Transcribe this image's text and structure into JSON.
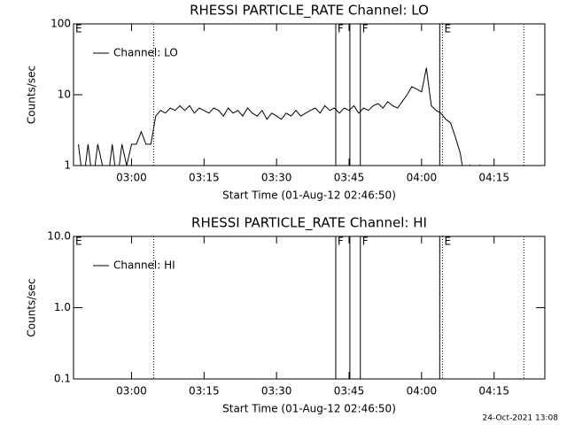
{
  "chart_data": [
    {
      "type": "line",
      "title": "RHESSI PARTICLE_RATE Channel: LO",
      "ylabel": "Counts/sec",
      "xlabel": "Start Time (01-Aug-12 02:46:50)",
      "log_y": true,
      "ylim": [
        1,
        100
      ],
      "yticks": [
        1,
        10,
        100
      ],
      "xlim": [
        "02:48:00",
        "04:25:30"
      ],
      "xticks": [
        "03:00",
        "03:15",
        "03:30",
        "03:45",
        "04:00",
        "04:15"
      ],
      "legend": "top-left",
      "markers": [
        {
          "x": "02:48:00",
          "label": "E",
          "style": "solid"
        },
        {
          "x": "03:04:34",
          "style": "dotted"
        },
        {
          "x": "03:42:15",
          "label": "F",
          "style": "solid"
        },
        {
          "x": "03:45:10",
          "style": "solid"
        },
        {
          "x": "03:47:20",
          "label": "F",
          "style": "solid"
        },
        {
          "x": "04:03:45",
          "style": "solid"
        },
        {
          "x": "04:04:20",
          "label": "E",
          "style": "dotted"
        },
        {
          "x": "04:21:10",
          "style": "dotted"
        }
      ],
      "series": [
        {
          "name": "Channel: LO",
          "color": "#000000",
          "x": [
            "02:49",
            "02:50",
            "02:51",
            "02:52",
            "02:53",
            "02:54",
            "02:55",
            "02:56",
            "02:57",
            "02:58",
            "02:59",
            "03:00",
            "03:01",
            "03:02",
            "03:03",
            "03:04",
            "03:05",
            "03:06",
            "03:07",
            "03:08",
            "03:09",
            "03:10",
            "03:11",
            "03:12",
            "03:13",
            "03:14",
            "03:15",
            "03:16",
            "03:17",
            "03:18",
            "03:19",
            "03:20",
            "03:21",
            "03:22",
            "03:23",
            "03:24",
            "03:25",
            "03:26",
            "03:27",
            "03:28",
            "03:29",
            "03:30",
            "03:31",
            "03:32",
            "03:33",
            "03:34",
            "03:35",
            "03:36",
            "03:37",
            "03:38",
            "03:39",
            "03:40",
            "03:41",
            "03:42",
            "03:43",
            "03:44",
            "03:45",
            "03:46",
            "03:47",
            "03:48",
            "03:49",
            "03:50",
            "03:51",
            "03:52",
            "03:53",
            "03:54",
            "03:55",
            "03:56",
            "03:57",
            "03:58",
            "03:59",
            "04:00",
            "04:01",
            "04:02",
            "04:03",
            "04:04",
            "04:05",
            "04:06",
            "04:07",
            "04:08",
            "04:09",
            "04:10",
            "04:11",
            "04:12",
            "04:13",
            "04:14"
          ],
          "values": [
            2,
            0,
            2,
            0,
            2,
            1,
            0,
            2,
            0,
            2,
            1,
            2,
            2,
            3,
            2,
            2,
            5,
            6,
            5.5,
            6.5,
            6,
            7,
            6,
            7,
            5.5,
            6.5,
            6,
            5.5,
            6.5,
            6,
            5,
            6.5,
            5.5,
            6,
            5,
            6.5,
            5.5,
            5,
            6,
            4.5,
            5.5,
            5,
            4.5,
            5.5,
            5,
            6,
            5,
            5.5,
            6,
            6.5,
            5.5,
            7,
            6,
            6.5,
            5.5,
            6.5,
            6,
            7,
            5.5,
            6.5,
            6,
            7,
            7.5,
            6.5,
            8,
            7,
            6.5,
            8,
            10,
            13,
            12,
            11,
            24,
            7,
            6,
            5.5,
            4.5,
            4,
            2.5,
            1.5,
            0,
            1,
            0,
            1,
            0,
            0
          ]
        }
      ]
    },
    {
      "type": "line",
      "title": "RHESSI PARTICLE_RATE Channel: HI",
      "ylabel": "Counts/sec",
      "xlabel": "Start Time (01-Aug-12 02:46:50)",
      "log_y": true,
      "ylim": [
        0.1,
        10
      ],
      "yticks": [
        0.1,
        {
          "value": 1,
          "label": "1.0"
        },
        {
          "value": 10,
          "label": "10.0"
        }
      ],
      "xlim": [
        "02:48:00",
        "04:25:30"
      ],
      "xticks": [
        "03:00",
        "03:15",
        "03:30",
        "03:45",
        "04:00",
        "04:15"
      ],
      "legend": "top-left",
      "markers": [
        {
          "x": "02:48:00",
          "label": "E",
          "style": "solid"
        },
        {
          "x": "03:04:34",
          "style": "dotted"
        },
        {
          "x": "03:42:15",
          "label": "F",
          "style": "solid"
        },
        {
          "x": "03:45:10",
          "style": "solid"
        },
        {
          "x": "03:47:20",
          "label": "F",
          "style": "solid"
        },
        {
          "x": "04:03:45",
          "style": "solid"
        },
        {
          "x": "04:04:20",
          "label": "E",
          "style": "dotted"
        },
        {
          "x": "04:21:10",
          "style": "dotted"
        }
      ],
      "series": [
        {
          "name": "Channel: HI",
          "color": "#000000",
          "x": [],
          "values": []
        }
      ]
    }
  ],
  "footer": "24-Oct-2021 13:08"
}
